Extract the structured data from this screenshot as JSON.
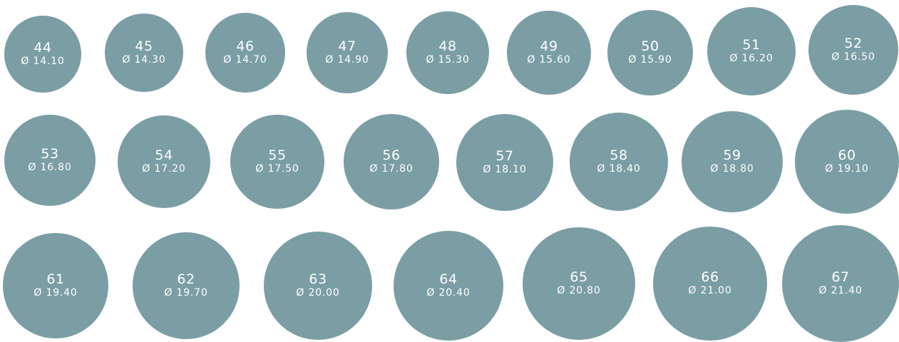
{
  "style": {
    "circle_color": "#7a9ea4",
    "text_color": "#ffffff"
  },
  "rows": [
    [
      {
        "size": "44",
        "diameter": "Ø 14.10"
      },
      {
        "size": "45",
        "diameter": "Ø 14.30"
      },
      {
        "size": "46",
        "diameter": "Ø 14.70"
      },
      {
        "size": "47",
        "diameter": "Ø 14.90"
      },
      {
        "size": "48",
        "diameter": "Ø 15.30"
      },
      {
        "size": "49",
        "diameter": "Ø 15.60"
      },
      {
        "size": "50",
        "diameter": "Ø 15.90"
      },
      {
        "size": "51",
        "diameter": "Ø 16.20"
      },
      {
        "size": "52",
        "diameter": "Ø 16.50"
      }
    ],
    [
      {
        "size": "53",
        "diameter": "Ø 16.80"
      },
      {
        "size": "54",
        "diameter": "Ø 17.20"
      },
      {
        "size": "55",
        "diameter": "Ø 17.50"
      },
      {
        "size": "56",
        "diameter": "Ø 17.80"
      },
      {
        "size": "57",
        "diameter": "Ø 18.10"
      },
      {
        "size": "58",
        "diameter": "Ø 18.40"
      },
      {
        "size": "59",
        "diameter": "Ø 18.80"
      },
      {
        "size": "60",
        "diameter": "Ø 19.10"
      }
    ],
    [
      {
        "size": "61",
        "diameter": "Ø 19.40"
      },
      {
        "size": "62",
        "diameter": "Ø 19.70"
      },
      {
        "size": "63",
        "diameter": "Ø 20.00"
      },
      {
        "size": "64",
        "diameter": "Ø 20.40"
      },
      {
        "size": "65",
        "diameter": "Ø 20.80"
      },
      {
        "size": "66",
        "diameter": "Ø 21.00"
      },
      {
        "size": "67",
        "diameter": "Ø 21.40"
      }
    ]
  ]
}
